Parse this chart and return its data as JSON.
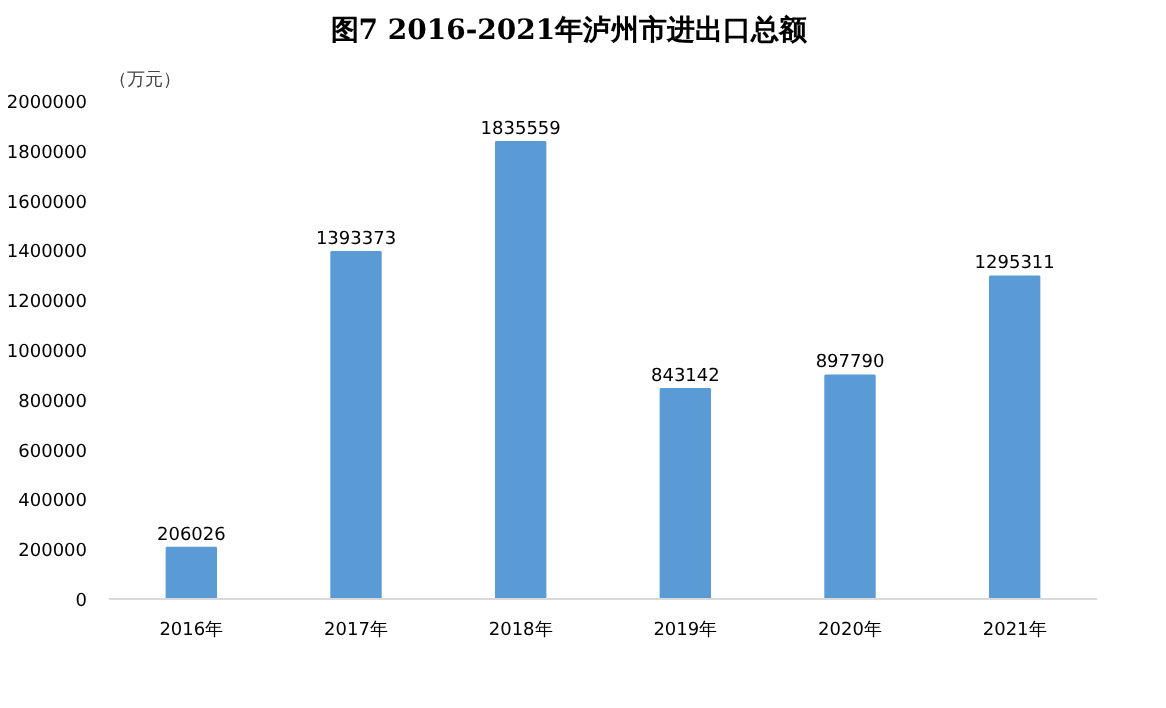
{
  "chart_data": {
    "type": "bar",
    "title": "图7        2016-2021年泸州市进出口总额",
    "ylabel": "（万元）",
    "categories": [
      "2016年",
      "2017年",
      "2018年",
      "2019年",
      "2020年",
      "2021年"
    ],
    "values": [
      206026,
      1393373,
      1835559,
      843142,
      897790,
      1295311
    ],
    "color": "#5b9bd5",
    "ylim": [
      0,
      2000000
    ],
    "yticks": [
      0,
      200000,
      400000,
      600000,
      800000,
      1000000,
      1200000,
      1400000,
      1600000,
      1800000,
      2000000
    ],
    "grid": false,
    "data_labels": true
  }
}
